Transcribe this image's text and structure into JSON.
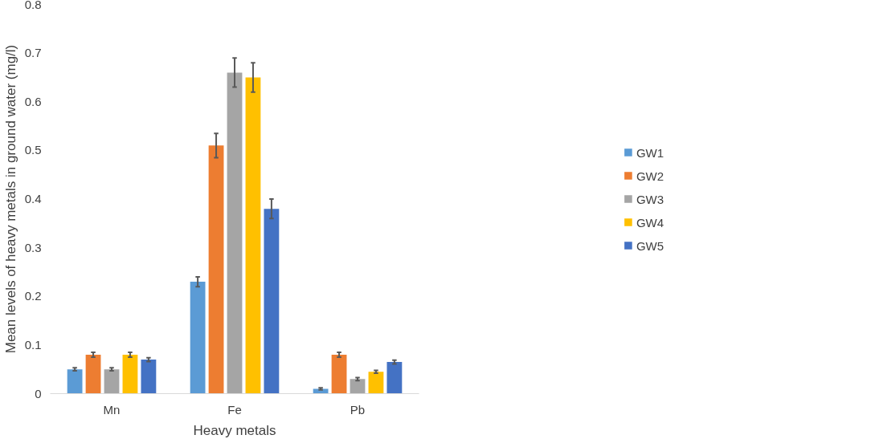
{
  "chart_data": {
    "type": "bar",
    "xlabel": "Heavy metals",
    "ylabel": "Mean levels of heavy metals in ground water (mg/l)",
    "categories": [
      "Mn",
      "Fe",
      "Pb"
    ],
    "series": [
      {
        "name": "GW1",
        "color": "#5b9bd5",
        "values": [
          0.05,
          0.23,
          0.01
        ],
        "errors": [
          0.003,
          0.01,
          0.002
        ]
      },
      {
        "name": "GW2",
        "color": "#ed7d31",
        "values": [
          0.08,
          0.51,
          0.08
        ],
        "errors": [
          0.005,
          0.025,
          0.005
        ]
      },
      {
        "name": "GW3",
        "color": "#a5a5a5",
        "values": [
          0.05,
          0.66,
          0.03
        ],
        "errors": [
          0.003,
          0.03,
          0.003
        ]
      },
      {
        "name": "GW4",
        "color": "#ffc000",
        "values": [
          0.08,
          0.65,
          0.045
        ],
        "errors": [
          0.005,
          0.03,
          0.003
        ]
      },
      {
        "name": "GW5",
        "color": "#4472c4",
        "values": [
          0.07,
          0.38,
          0.065
        ],
        "errors": [
          0.004,
          0.02,
          0.004
        ]
      }
    ],
    "ylim": [
      0,
      0.8
    ],
    "yticks": [
      0,
      0.1,
      0.2,
      0.3,
      0.4,
      0.5,
      0.6,
      0.7,
      0.8
    ],
    "grid": false,
    "legend": "right"
  }
}
